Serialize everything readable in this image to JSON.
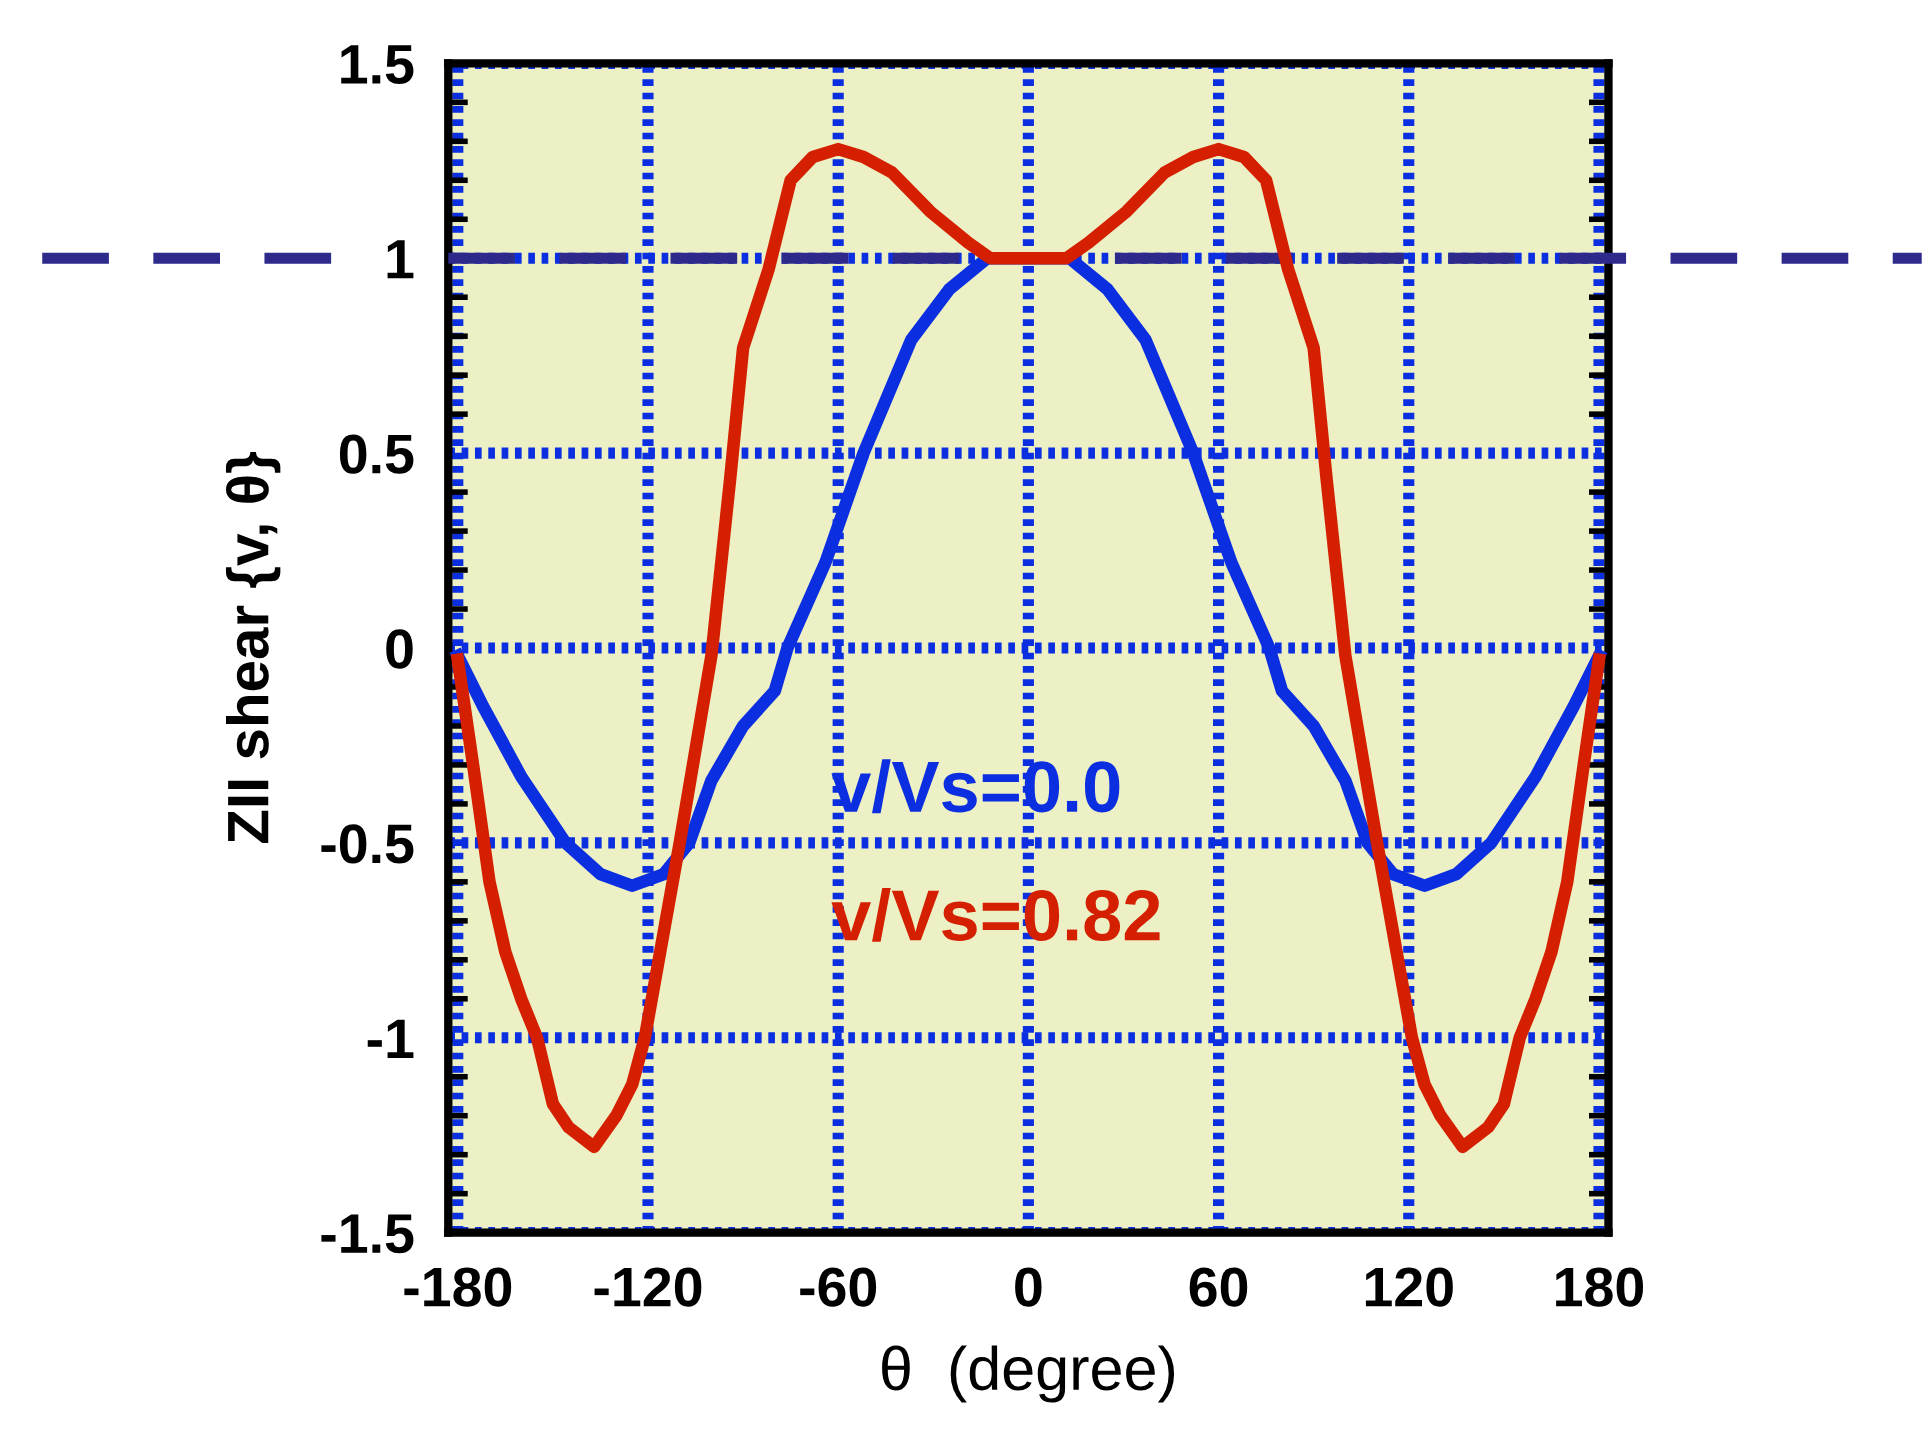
{
  "chart_data": {
    "type": "line",
    "xlabel": "θ  (degree)",
    "ylabel": "ZII shear {v, θ}",
    "xlim": [
      -183,
      183
    ],
    "xticks": [
      -180,
      -120,
      -60,
      0,
      60,
      120,
      180
    ],
    "ylim": [
      -1.5,
      1.5
    ],
    "yticks": [
      -1.5,
      -1,
      -0.5,
      0,
      0.5,
      1,
      1.5
    ],
    "grid": true,
    "legend": false,
    "marker": "none",
    "line_style": "solid",
    "ref_lines": [
      {
        "axis": "y",
        "value": 1,
        "color": "#2e2a8c",
        "line_style": "dashed"
      }
    ],
    "series": [
      {
        "name": "v/Vs=0.0",
        "color": "#0a2ee0",
        "x": [
          -180,
          -172,
          -160,
          -146,
          -135,
          -125,
          -115,
          -107,
          -100,
          -90,
          -80,
          -76,
          -64,
          -52,
          -37,
          -25,
          -13,
          0,
          13,
          25,
          37,
          52,
          64,
          76,
          80,
          90,
          100,
          107,
          115,
          125,
          135,
          146,
          160,
          172,
          180
        ],
        "values": [
          -0.02,
          -0.15,
          -0.33,
          -0.5,
          -0.58,
          -0.61,
          -0.58,
          -0.5,
          -0.34,
          -0.2,
          -0.11,
          0.0,
          0.22,
          0.5,
          0.79,
          0.92,
          1.0,
          1.0,
          1.0,
          0.92,
          0.79,
          0.5,
          0.22,
          0.0,
          -0.11,
          -0.2,
          -0.34,
          -0.5,
          -0.58,
          -0.61,
          -0.58,
          -0.5,
          -0.33,
          -0.15,
          -0.02
        ]
      },
      {
        "name": "v/Vs=0.82",
        "color": "#d42000",
        "x": [
          -180,
          -175,
          -170,
          -165,
          -160,
          -155,
          -150,
          -145,
          -137,
          -130,
          -125,
          -121,
          -110,
          -100,
          -94,
          -90,
          -82,
          -75,
          -68,
          -60,
          -52,
          -43,
          -31,
          -19,
          -12,
          0,
          12,
          19,
          31,
          43,
          52,
          60,
          68,
          75,
          82,
          90,
          94,
          100,
          110,
          121,
          125,
          130,
          137,
          145,
          150,
          155,
          160,
          165,
          170,
          175,
          180
        ],
        "values": [
          -0.03,
          -0.31,
          -0.6,
          -0.78,
          -0.9,
          -1.0,
          -1.17,
          -1.23,
          -1.28,
          -1.2,
          -1.12,
          -1.0,
          -0.5,
          -0.02,
          0.44,
          0.77,
          0.97,
          1.2,
          1.26,
          1.28,
          1.26,
          1.22,
          1.12,
          1.04,
          1.0,
          1.0,
          1.0,
          1.04,
          1.12,
          1.22,
          1.26,
          1.28,
          1.26,
          1.2,
          0.97,
          0.77,
          0.44,
          -0.02,
          -0.5,
          -1.0,
          -1.12,
          -1.2,
          -1.28,
          -1.23,
          -1.17,
          -1.0,
          -0.9,
          -0.78,
          -0.6,
          -0.31,
          -0.03
        ]
      }
    ]
  }
}
